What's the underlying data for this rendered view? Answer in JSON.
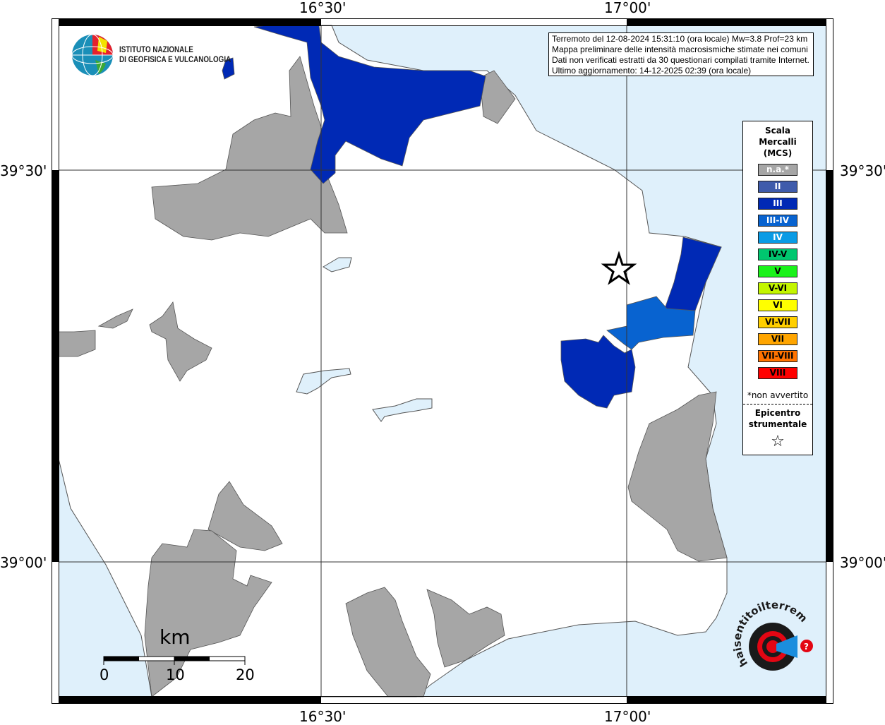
{
  "map": {
    "lon_labels": [
      "16°30'",
      "17°00'"
    ],
    "lat_labels": [
      "39°30'",
      "39°00'"
    ],
    "colors": {
      "sea": "#dff0fb",
      "land": "#ffffff",
      "na": "#a6a6a6",
      "II": "#3f5bab",
      "III": "#0029b5",
      "III-IV": "#0863d0",
      "IV": "#0a9be5"
    }
  },
  "logo": {
    "institute_line1": "ISTITUTO NAZIONALE",
    "institute_line2": "DI GEOFISICA E VULCANOLOGIA",
    "site_logo": "www.haisentitoilterremoto.it"
  },
  "info": {
    "lines": [
      "Terremoto del 12-08-2024 15:31:10 (ora locale) Mw=3.8 Prof=23 km",
      "Mappa preliminare delle intensità macrosismiche stimate nei comuni",
      "Dati non verificati estratti da 30 questionari compilati tramite Internet.",
      "Ultimo aggiornamento: 14-12-2025 02:39 (ora locale)"
    ]
  },
  "legend": {
    "title": [
      "Scala",
      "Mercalli",
      "(MCS)"
    ],
    "items": [
      {
        "label": "n.a.*",
        "color": "#a6a6a6",
        "text": "#ffffff"
      },
      {
        "label": "II",
        "color": "#3f5bab",
        "text": "#ffffff"
      },
      {
        "label": "III",
        "color": "#0029b5",
        "text": "#ffffff"
      },
      {
        "label": "III-IV",
        "color": "#0863d0",
        "text": "#ffffff"
      },
      {
        "label": "IV",
        "color": "#0a9be5",
        "text": "#ffffff"
      },
      {
        "label": "IV-V",
        "color": "#00c76f",
        "text": "#000000"
      },
      {
        "label": "V",
        "color": "#1af21a",
        "text": "#000000"
      },
      {
        "label": "V-VI",
        "color": "#c3f500",
        "text": "#000000"
      },
      {
        "label": "VI",
        "color": "#ffff00",
        "text": "#000000"
      },
      {
        "label": "VI-VII",
        "color": "#ffcf00",
        "text": "#000000"
      },
      {
        "label": "VII",
        "color": "#ffa500",
        "text": "#000000"
      },
      {
        "label": "VII-VIII",
        "color": "#ff7300",
        "text": "#000000"
      },
      {
        "label": "VIII",
        "color": "#ff0000",
        "text": "#000000"
      }
    ],
    "note": "*non avvertito",
    "epicenter_label": [
      "Epicentro",
      "strumentale"
    ],
    "epicenter_symbol": "☆"
  },
  "scale_bar": {
    "unit": "km",
    "labels": [
      "0",
      "10",
      "20"
    ]
  }
}
